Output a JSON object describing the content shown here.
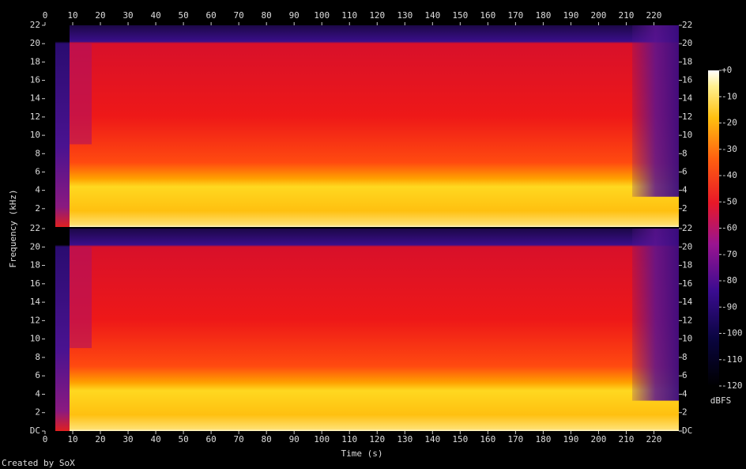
{
  "chart_data": {
    "type": "spectrogram",
    "x_label": "Time (s)",
    "y_label": "Frequency (kHz)",
    "xlim": [
      0,
      229
    ],
    "xticks": [
      0,
      10,
      20,
      30,
      40,
      50,
      60,
      70,
      80,
      90,
      100,
      110,
      120,
      130,
      140,
      150,
      160,
      170,
      180,
      190,
      200,
      210,
      220
    ],
    "channels": [
      {
        "ylim": [
          0,
          22
        ],
        "yticks": [
          2,
          4,
          6,
          8,
          10,
          12,
          14,
          16,
          18,
          20,
          22
        ]
      },
      {
        "ylim": [
          0,
          22
        ],
        "yticks": [
          {
            "value": 0,
            "label": "DC"
          },
          2,
          4,
          6,
          8,
          10,
          12,
          14,
          16,
          18,
          20,
          22
        ]
      }
    ],
    "colorbar": {
      "label": "dBFS",
      "lim": [
        -120,
        0
      ],
      "ticks": [
        {
          "value": 0,
          "label": "+0"
        },
        -10,
        -20,
        -30,
        -40,
        -50,
        -60,
        -70,
        -80,
        -90,
        -100,
        -110,
        -120
      ]
    }
  },
  "footer": "Created by SoX"
}
